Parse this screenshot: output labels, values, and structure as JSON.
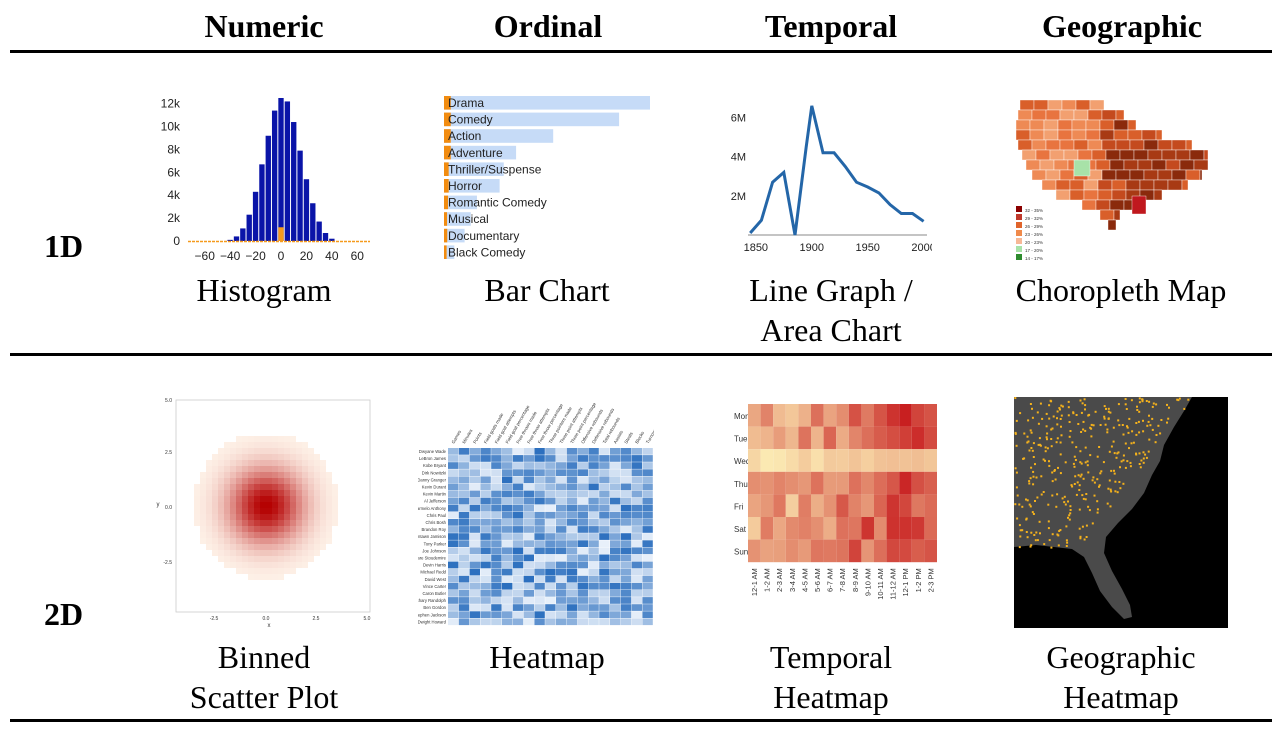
{
  "columns": [
    "Numeric",
    "Ordinal",
    "Temporal",
    "Geographic"
  ],
  "rows": [
    "1D",
    "2D"
  ],
  "captions": {
    "histogram": "Histogram",
    "bar_chart": "Bar Chart",
    "line_graph_1": "Line Graph /",
    "line_graph_2": "Area Chart",
    "choropleth": "Choropleth Map",
    "binned_1": "Binned",
    "binned_2": "Scatter Plot",
    "heatmap": "Heatmap",
    "temporal_1": "Temporal",
    "temporal_2": "Heatmap",
    "geo_1": "Geographic",
    "geo_2": "Heatmap"
  },
  "histogram": {
    "y_ticks": [
      "12k",
      "10k",
      "8k",
      "6k",
      "4k",
      "2k",
      "0"
    ],
    "x_ticks": [
      "−60",
      "−40",
      "−20",
      "0",
      "20",
      "40",
      "60"
    ],
    "bar_color": "#0a14a8",
    "highlight_color": "#f59a1c",
    "chart_data": {
      "type": "bar",
      "x": [
        -40,
        -35,
        -30,
        -25,
        -20,
        -15,
        -10,
        -5,
        0,
        5,
        10,
        15,
        20,
        25,
        30,
        35,
        40
      ],
      "values": [
        100,
        400,
        1100,
        2300,
        4300,
        6700,
        9200,
        11400,
        12500,
        12200,
        10400,
        7900,
        5400,
        3300,
        1700,
        700,
        200
      ],
      "highlight": [
        0,
        0,
        0,
        0,
        0,
        0,
        0,
        0,
        1200,
        0,
        0,
        0,
        0,
        0,
        0,
        0,
        0
      ],
      "ylim": [
        0,
        12500
      ],
      "xlim": [
        -70,
        70
      ]
    }
  },
  "bar_chart": {
    "bg_color": "#c6dbf7",
    "accent_color": "#f28c10",
    "chart_data": {
      "type": "bar",
      "categories": [
        "Drama",
        "Comedy",
        "Action",
        "Adventure",
        "Thriller/Suspense",
        "Horror",
        "Romantic Comedy",
        "Musical",
        "Documentary",
        "Black Comedy"
      ],
      "values": [
        100,
        85,
        53,
        35,
        29,
        27,
        16,
        13,
        10,
        5
      ],
      "highlight": [
        2.3,
        2.3,
        2.3,
        2.3,
        1.3,
        1.3,
        1.0,
        0.5,
        0.6,
        0.3
      ]
    }
  },
  "line_graph": {
    "y_ticks": [
      "6M",
      "4M",
      "2M"
    ],
    "x_ticks": [
      "1850",
      "1900",
      "1950",
      "2000"
    ],
    "line_color": "#2466a8",
    "chart_data": {
      "type": "line",
      "x": [
        1845,
        1855,
        1865,
        1875,
        1885,
        1895,
        1900,
        1910,
        1920,
        1930,
        1940,
        1950,
        1960,
        1970,
        1980,
        1990,
        2000
      ],
      "y": [
        0.1,
        0.75,
        2.7,
        3.2,
        0.0,
        4.5,
        6.6,
        4.2,
        4.2,
        3.5,
        2.7,
        2.45,
        2.15,
        1.55,
        1.1,
        1.1,
        0.7
      ],
      "xlim": [
        1843,
        2003
      ],
      "ylim": [
        0,
        7
      ]
    }
  },
  "choropleth": {
    "legend": [
      "32 - 35%",
      "29 - 32%",
      "26 - 29%",
      "23 - 26%",
      "20 - 23%",
      "17 - 20%",
      "14 - 17%"
    ],
    "legend_colors": [
      "#8b0000",
      "#c0392b",
      "#e0642b",
      "#f08a4b",
      "#f7b896",
      "#a8e2a8",
      "#2e8b2e"
    ]
  },
  "binned_scatter": {
    "y_ticks": [
      "5.0",
      "2.5",
      "0.0",
      "-2.5"
    ],
    "x_ticks": [
      "-2.5",
      "0.0",
      "2.5",
      "5.0"
    ],
    "xlabel": "x",
    "ylabel": "y"
  },
  "heatmap": {
    "players": [
      "Dwyane Wade",
      "LeBron James",
      "Kobe Bryant",
      "Dirk Nowitzki",
      "Danny Granger",
      "Kevin Durant",
      "Kevin Martin",
      "Al Jefferson",
      "Carmelo Anthony",
      "Chris Paul",
      "Chris Bosh",
      "Brandon Roy",
      "Antawn Jamison",
      "Tony Parker",
      "Joe Johnson",
      "Amare Stoudemire",
      "Devin Harris",
      "Michael Redd",
      "David West",
      "Vince Carter",
      "Caron Butler",
      "Zachary Randolph",
      "Ben Gordon",
      "Stephen Jackson",
      "Dwight Howard"
    ],
    "stats": [
      "Games",
      "Minutes",
      "Points",
      "Field goals made",
      "Field goal attempts",
      "Field goal percentage",
      "Free throws made",
      "Free throw attempts",
      "Free throw percentage",
      "Three pointers made",
      "Three point attempts",
      "Three point percentage",
      "Offensive rebounds",
      "Defensive rebounds",
      "Total rebounds",
      "Assists",
      "Steals",
      "Blocks",
      "Turnovers"
    ]
  },
  "temporal_heatmap": {
    "days": [
      "Mon",
      "Tue",
      "Wed",
      "Thu",
      "Fri",
      "Sat",
      "Sun"
    ],
    "hours": [
      "12-1 AM",
      "1-2 AM",
      "2-3 AM",
      "3-4 AM",
      "4-5 AM",
      "5-6 AM",
      "6-7 AM",
      "7-8 AM",
      "8-9 AM",
      "9-10 AM",
      "10-11 AM",
      "11-12 AM",
      "12-1 PM",
      "1-2 PM",
      "2-3 PM"
    ]
  },
  "geo_heatmap": {
    "land_color": "#4a4a4a",
    "point_color": "#f5b21c",
    "sea_color": "#000000"
  }
}
